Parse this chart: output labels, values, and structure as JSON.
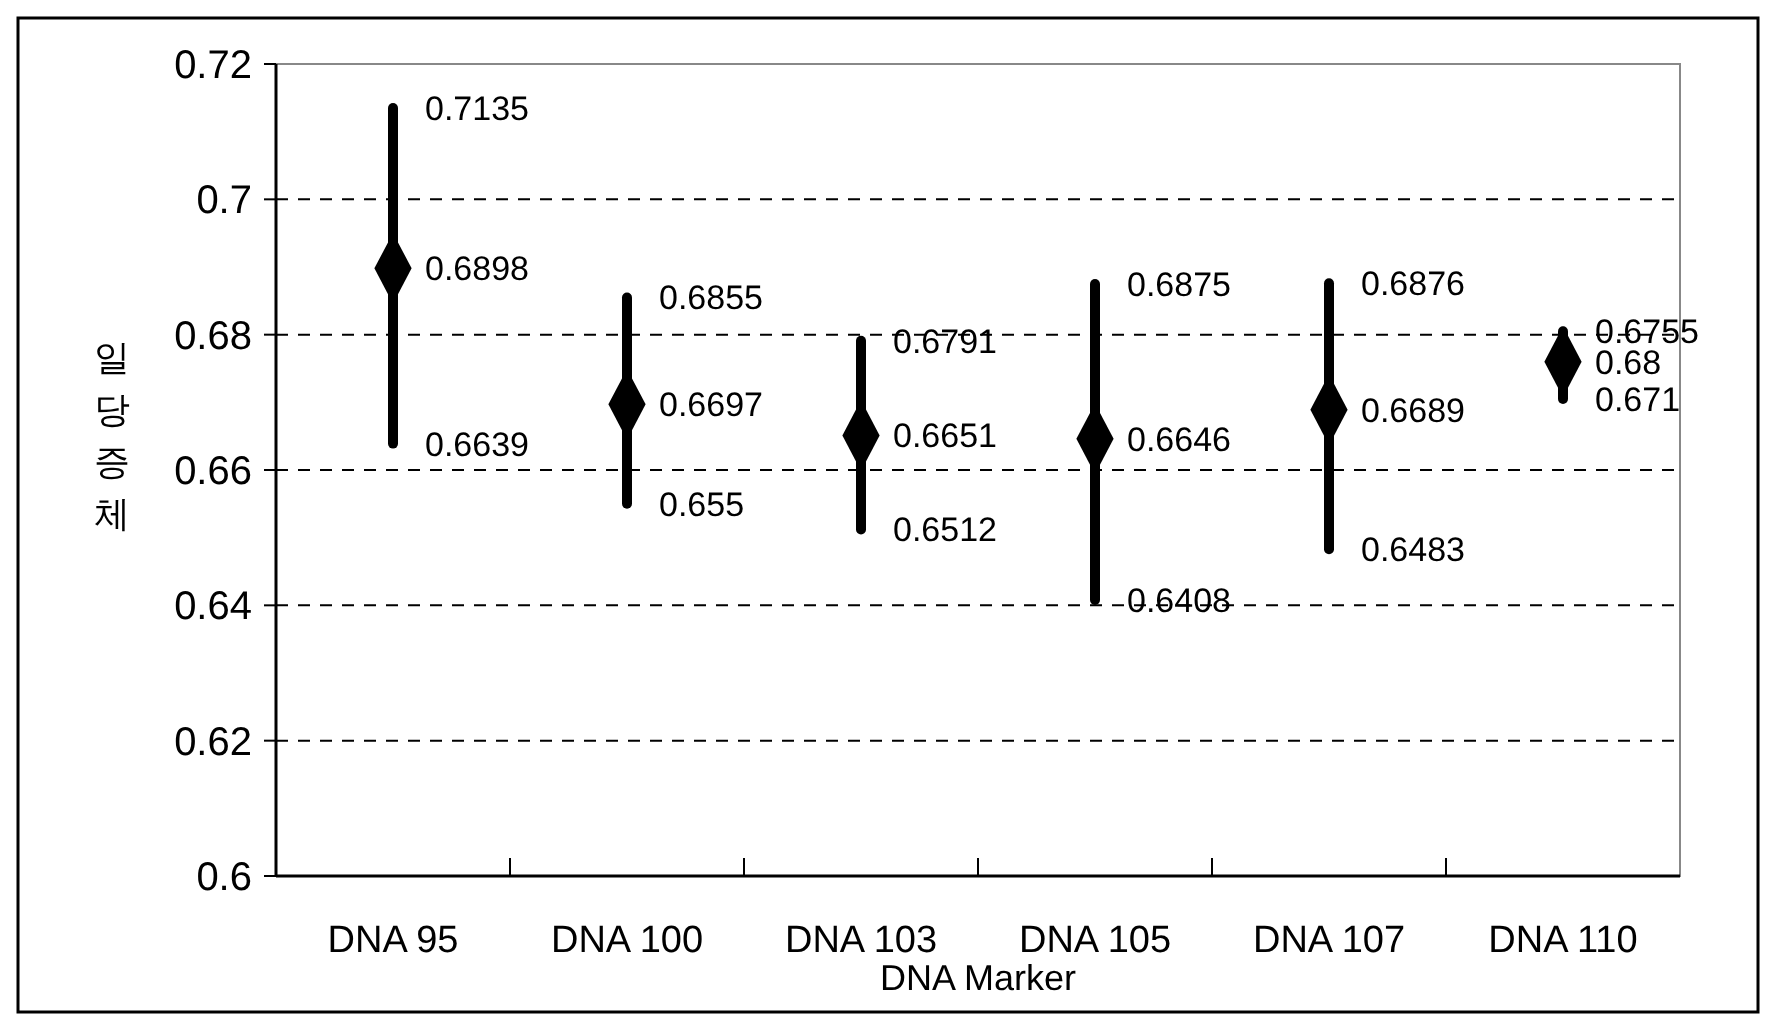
{
  "chart_data": {
    "type": "scatter",
    "xlabel": "DNA Marker",
    "ylabel": "일당증체",
    "categories": [
      "DNA 95",
      "DNA 100",
      "DNA 103",
      "DNA 105",
      "DNA 107",
      "DNA 110"
    ],
    "series": [
      {
        "color": "#000000",
        "values": [
          0.6898,
          0.6697,
          0.6651,
          0.6646,
          0.6689,
          0.676
        ],
        "errors": [
          [
            0.6639,
            0.7135
          ],
          [
            0.655,
            0.6855
          ],
          [
            0.6512,
            0.6791
          ],
          [
            0.6408,
            0.6875
          ],
          [
            0.6483,
            0.6876
          ],
          [
            0.6705,
            0.6805
          ]
        ],
        "value_labels": [
          "0.6898",
          "0.6697",
          "0.6651",
          "0.6646",
          "0.6689",
          "0.68"
        ]
      }
    ],
    "annotations": [
      {
        "text": "0.7135",
        "x": "DNA 95",
        "y": 0.7135
      },
      {
        "text": "0.6639",
        "x": "DNA 95",
        "y": 0.6639
      },
      {
        "text": "0.6855",
        "x": "DNA 100",
        "y": 0.6855
      },
      {
        "text": "0.655",
        "x": "DNA 100",
        "y": 0.655
      },
      {
        "text": "0.6791",
        "x": "DNA 103",
        "y": 0.6791
      },
      {
        "text": "0.6512",
        "x": "DNA 103",
        "y": 0.6512
      },
      {
        "text": "0.6875",
        "x": "DNA 105",
        "y": 0.6875
      },
      {
        "text": "0.6408",
        "x": "DNA 105",
        "y": 0.6408
      },
      {
        "text": "0.6876",
        "x": "DNA 107",
        "y": 0.6876
      },
      {
        "text": "0.6483",
        "x": "DNA 107",
        "y": 0.6483
      },
      {
        "text": "0.6755",
        "x": "DNA 110",
        "y": 0.6805
      },
      {
        "text": "0.671",
        "x": "DNA 110",
        "y": 0.6705
      }
    ],
    "ylim": [
      0.6,
      0.72
    ],
    "yticks": [
      0.6,
      0.62,
      0.64,
      0.66,
      0.68,
      {
        "value": 0.7,
        "label": "0.7"
      },
      0.72
    ],
    "grid": "y",
    "marker": "diamond"
  }
}
